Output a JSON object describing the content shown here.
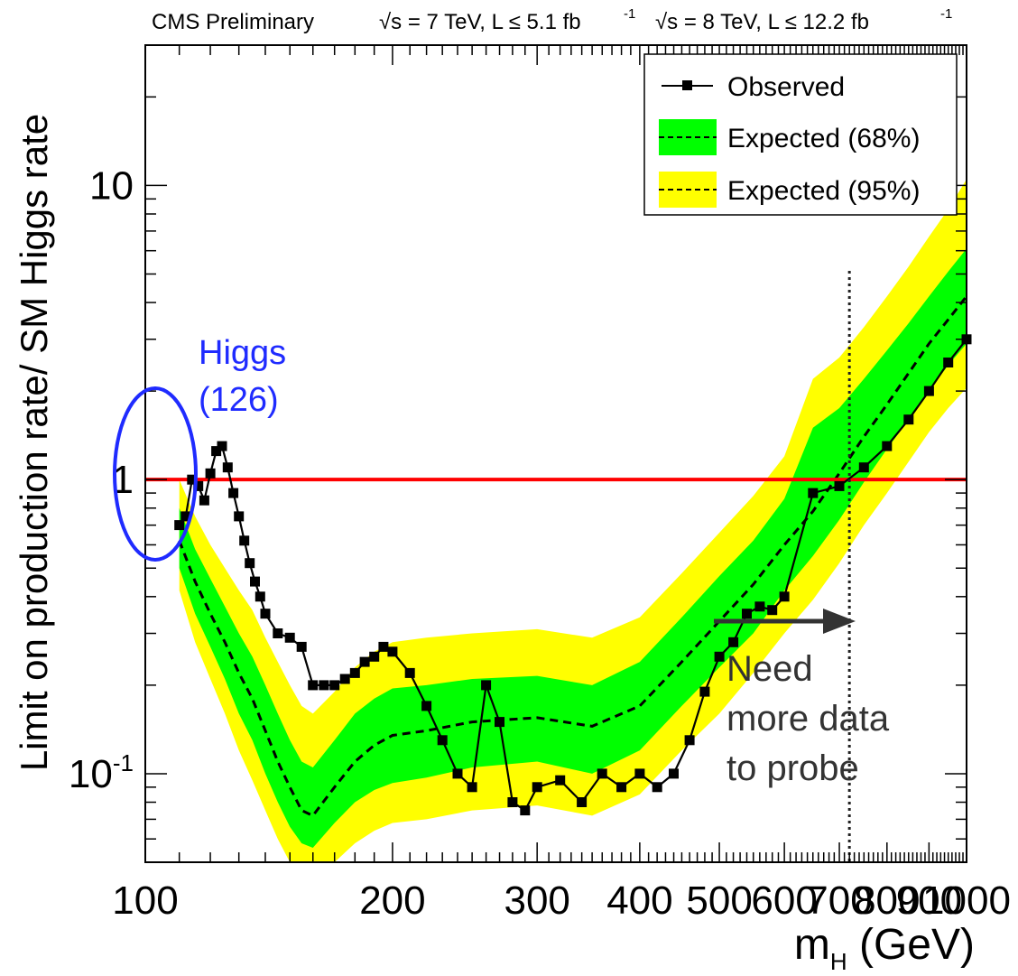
{
  "chart_data": {
    "type": "line",
    "header": {
      "experiment": "CMS Preliminary",
      "energy1": "√s = 7 TeV, L ≤ 5.1 fb",
      "sup1": "-1",
      "energy2": "√s = 8 TeV, L ≤ 12.2 fb",
      "sup2": "-1"
    },
    "ylabel": "Limit on production rate/ SM Higgs rate",
    "xlabel": "m",
    "xlabel_sub": "H",
    "xlabel_unit": " (GeV)",
    "x_scale": "log",
    "y_scale": "log",
    "xlim": [
      100,
      1000
    ],
    "ylim": [
      0.05,
      30
    ],
    "x_tick_labels": [
      "100",
      "200",
      "300",
      "400",
      "500",
      "600",
      "700",
      "800",
      "900",
      "1000"
    ],
    "x_ticks": [
      100,
      200,
      300,
      400,
      500,
      600,
      700,
      800,
      900,
      1000
    ],
    "y_tick_labels": [
      {
        "value": 10,
        "base": "10",
        "exp": ""
      },
      {
        "value": 1,
        "base": "1",
        "exp": ""
      },
      {
        "value": 0.1,
        "base": "10",
        "exp": "-1"
      }
    ],
    "legend": {
      "position": "top-right",
      "entries": [
        "Observed",
        "Expected (68%)",
        "Expected (95%)"
      ]
    },
    "colors": {
      "observed": "#000000",
      "band68": "#00ff00",
      "band95": "#ffff00",
      "sm_line": "#ff0000",
      "higgs_annotation": "#1f2bff",
      "arrow": "#333333"
    },
    "reference_line": {
      "y": 1
    },
    "observed": {
      "x": [
        110,
        112,
        114,
        116,
        118,
        120,
        122,
        124,
        126,
        128,
        130,
        132,
        134,
        136,
        138,
        140,
        145,
        150,
        155,
        160,
        165,
        170,
        175,
        180,
        185,
        190,
        195,
        200,
        210,
        220,
        230,
        240,
        250,
        260,
        270,
        280,
        290,
        300,
        320,
        340,
        360,
        380,
        400,
        420,
        440,
        460,
        480,
        500,
        520,
        540,
        560,
        580,
        600,
        650,
        700,
        750,
        800,
        850,
        900,
        950,
        1000
      ],
      "y": [
        0.7,
        0.75,
        1.0,
        0.95,
        0.85,
        1.05,
        1.25,
        1.3,
        1.1,
        0.9,
        0.75,
        0.62,
        0.52,
        0.45,
        0.4,
        0.35,
        0.3,
        0.29,
        0.27,
        0.2,
        0.2,
        0.2,
        0.21,
        0.22,
        0.24,
        0.25,
        0.27,
        0.26,
        0.22,
        0.17,
        0.13,
        0.1,
        0.09,
        0.2,
        0.15,
        0.08,
        0.075,
        0.09,
        0.095,
        0.08,
        0.1,
        0.09,
        0.1,
        0.09,
        0.1,
        0.13,
        0.19,
        0.25,
        0.28,
        0.35,
        0.37,
        0.36,
        0.4,
        0.9,
        0.95,
        1.1,
        1.3,
        1.6,
        2.0,
        2.5,
        3.0
      ]
    },
    "expected_median": {
      "x": [
        110,
        115,
        120,
        125,
        130,
        135,
        140,
        145,
        150,
        155,
        160,
        170,
        180,
        190,
        200,
        220,
        250,
        300,
        350,
        400,
        450,
        500,
        550,
        600,
        650,
        700,
        750,
        800,
        850,
        900,
        950,
        1000
      ],
      "y": [
        0.62,
        0.45,
        0.35,
        0.28,
        0.22,
        0.18,
        0.14,
        0.11,
        0.09,
        0.075,
        0.072,
        0.09,
        0.11,
        0.125,
        0.135,
        0.14,
        0.15,
        0.155,
        0.145,
        0.17,
        0.24,
        0.33,
        0.44,
        0.6,
        0.78,
        1.05,
        1.4,
        1.8,
        2.3,
        2.9,
        3.5,
        4.2
      ]
    },
    "band68": {
      "x": [
        110,
        115,
        120,
        125,
        130,
        135,
        140,
        145,
        150,
        155,
        160,
        170,
        180,
        190,
        200,
        220,
        250,
        300,
        350,
        400,
        450,
        500,
        550,
        600,
        650,
        700,
        750,
        800,
        850,
        900,
        950,
        1000
      ],
      "low": [
        0.5,
        0.35,
        0.27,
        0.21,
        0.16,
        0.13,
        0.1,
        0.08,
        0.066,
        0.058,
        0.056,
        0.068,
        0.08,
        0.088,
        0.093,
        0.097,
        0.105,
        0.11,
        0.1,
        0.12,
        0.17,
        0.23,
        0.3,
        0.42,
        0.55,
        0.73,
        0.98,
        1.27,
        1.6,
        2.0,
        2.45,
        2.9
      ],
      "high": [
        0.8,
        0.58,
        0.46,
        0.37,
        0.3,
        0.25,
        0.2,
        0.16,
        0.13,
        0.11,
        0.105,
        0.13,
        0.16,
        0.18,
        0.195,
        0.2,
        0.21,
        0.215,
        0.2,
        0.24,
        0.34,
        0.47,
        0.62,
        0.86,
        1.5,
        1.75,
        2.2,
        2.75,
        3.4,
        4.2,
        5.1,
        6.1
      ]
    },
    "band95": {
      "x": [
        110,
        115,
        120,
        125,
        130,
        135,
        140,
        145,
        150,
        155,
        160,
        170,
        180,
        190,
        200,
        220,
        250,
        300,
        350,
        400,
        450,
        500,
        550,
        600,
        650,
        700,
        750,
        800,
        850,
        900,
        950,
        1000
      ],
      "low": [
        0.42,
        0.28,
        0.21,
        0.16,
        0.12,
        0.095,
        0.075,
        0.06,
        0.05,
        0.045,
        0.044,
        0.05,
        0.058,
        0.064,
        0.068,
        0.07,
        0.075,
        0.078,
        0.072,
        0.085,
        0.12,
        0.16,
        0.22,
        0.3,
        0.39,
        0.52,
        0.7,
        0.9,
        1.15,
        1.45,
        1.75,
        2.05
      ],
      "high": [
        1.0,
        0.75,
        0.6,
        0.5,
        0.42,
        0.36,
        0.29,
        0.24,
        0.2,
        0.17,
        0.16,
        0.19,
        0.23,
        0.26,
        0.28,
        0.29,
        0.3,
        0.31,
        0.29,
        0.34,
        0.48,
        0.66,
        0.88,
        1.2,
        2.2,
        2.6,
        3.3,
        4.2,
        5.3,
        6.7,
        8.3,
        10.5
      ]
    },
    "annotations": {
      "higgs_line1": "Higgs",
      "higgs_line2": "(126)",
      "need_line1": "Need",
      "need_line2": "more data",
      "need_line3": "to probe",
      "vline_x": 720
    }
  }
}
